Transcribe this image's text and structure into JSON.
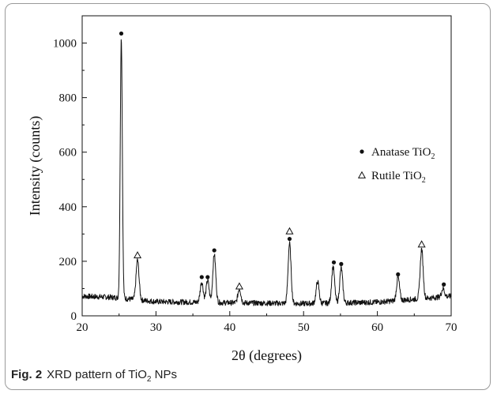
{
  "chart_data": {
    "type": "line",
    "xlabel": "2θ (degrees)",
    "ylabel": "Intensity (counts)",
    "xlim": [
      20,
      70
    ],
    "ylim": [
      0,
      1100
    ],
    "x_ticks": [
      20,
      30,
      40,
      50,
      60,
      70
    ],
    "y_ticks": [
      0,
      200,
      400,
      600,
      800,
      1000
    ],
    "grid": false,
    "legend_placement": "right",
    "legend": [
      {
        "marker": "dot",
        "label": "Anatase TiO",
        "sub": "2"
      },
      {
        "marker": "triangle",
        "label": "Rutile TiO",
        "sub": "2"
      }
    ],
    "baseline": [
      [
        20,
        72
      ],
      [
        24,
        68
      ],
      [
        30,
        52
      ],
      [
        40,
        48
      ],
      [
        50,
        45
      ],
      [
        60,
        50
      ],
      [
        70,
        72
      ]
    ],
    "peaks": [
      {
        "x": 25.3,
        "y": 1020,
        "phase": "anatase"
      },
      {
        "x": 27.5,
        "y": 205,
        "phase": "rutile"
      },
      {
        "x": 36.2,
        "y": 125,
        "phase": "anatase"
      },
      {
        "x": 37.0,
        "y": 130,
        "phase": "anatase"
      },
      {
        "x": 37.9,
        "y": 225,
        "phase": "anatase"
      },
      {
        "x": 41.3,
        "y": 100,
        "phase": "rutile"
      },
      {
        "x": 48.1,
        "y": 265,
        "phase": "anatase"
      },
      {
        "x": 51.9,
        "y": 125,
        "phase": "none"
      },
      {
        "x": 54.0,
        "y": 180,
        "phase": "anatase"
      },
      {
        "x": 55.1,
        "y": 175,
        "phase": "anatase"
      },
      {
        "x": 62.8,
        "y": 140,
        "phase": "anatase"
      },
      {
        "x": 66.0,
        "y": 245,
        "phase": "rutile"
      },
      {
        "x": 68.9,
        "y": 100,
        "phase": "anatase"
      }
    ],
    "markers": [
      {
        "x": 25.3,
        "y": 1035,
        "symbol": "dot"
      },
      {
        "x": 27.5,
        "y": 222,
        "symbol": "triangle"
      },
      {
        "x": 36.2,
        "y": 142,
        "symbol": "dot"
      },
      {
        "x": 37.0,
        "y": 142,
        "symbol": "dot"
      },
      {
        "x": 37.9,
        "y": 240,
        "symbol": "dot"
      },
      {
        "x": 41.3,
        "y": 108,
        "symbol": "triangle"
      },
      {
        "x": 48.1,
        "y": 310,
        "symbol": "triangle"
      },
      {
        "x": 48.1,
        "y": 282,
        "symbol": "dot"
      },
      {
        "x": 54.1,
        "y": 196,
        "symbol": "dot"
      },
      {
        "x": 55.1,
        "y": 190,
        "symbol": "dot"
      },
      {
        "x": 62.8,
        "y": 152,
        "symbol": "dot"
      },
      {
        "x": 66.0,
        "y": 262,
        "symbol": "triangle"
      },
      {
        "x": 69.0,
        "y": 115,
        "symbol": "dot"
      }
    ]
  },
  "caption": {
    "label": "Fig. 2",
    "text_before": "XRD pattern of TiO",
    "sub": "2",
    "text_after": " NPs"
  },
  "colors": {
    "line": "#111111",
    "axis": "#111111",
    "frame": "#9a9a9a"
  }
}
